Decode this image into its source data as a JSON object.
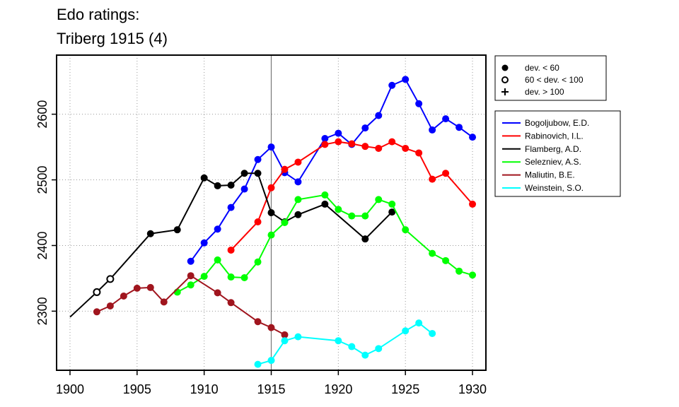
{
  "title_lines": [
    "Edo ratings:",
    "Triberg 1915 (4)"
  ],
  "chart_data": {
    "type": "line",
    "title": "Edo ratings: Triberg 1915 (4)",
    "xlabel": "",
    "ylabel": "",
    "xlim": [
      1899,
      1931
    ],
    "ylim": [
      2210,
      2690
    ],
    "x_ticks": [
      1900,
      1905,
      1910,
      1915,
      1920,
      1925,
      1930
    ],
    "y_ticks": [
      2300,
      2400,
      2500,
      2600
    ],
    "grid": true,
    "event_year": 1915,
    "marker_legend": [
      {
        "label": "dev. < 60",
        "symbol": "filled-circle"
      },
      {
        "label": "60 < dev. < 100",
        "symbol": "open-circle"
      },
      {
        "label": "dev. > 100",
        "symbol": "plus"
      }
    ],
    "legend_position": "right",
    "series": [
      {
        "name": "Bogoljubow, E.D.",
        "color": "#0000ff",
        "points": [
          [
            1909,
            2376,
            "f"
          ],
          [
            1910,
            2404,
            "f"
          ],
          [
            1911,
            2425,
            "f"
          ],
          [
            1912,
            2458,
            "f"
          ],
          [
            1913,
            2486,
            "f"
          ],
          [
            1914,
            2531,
            "f"
          ],
          [
            1915,
            2550,
            "f"
          ],
          [
            1916,
            2511,
            "f"
          ],
          [
            1917,
            2497,
            "f"
          ],
          [
            1919,
            2563,
            "f"
          ],
          [
            1920,
            2571,
            "f"
          ],
          [
            1921,
            2554,
            "f"
          ],
          [
            1922,
            2579,
            "f"
          ],
          [
            1923,
            2598,
            "f"
          ],
          [
            1924,
            2644,
            "f"
          ],
          [
            1925,
            2653,
            "f"
          ],
          [
            1926,
            2616,
            "f"
          ],
          [
            1927,
            2576,
            "f"
          ],
          [
            1928,
            2593,
            "f"
          ],
          [
            1929,
            2580,
            "f"
          ],
          [
            1930,
            2565,
            "f"
          ]
        ]
      },
      {
        "name": "Rabinovich, I.L.",
        "color": "#ff0000",
        "points": [
          [
            1912,
            2393,
            "f"
          ],
          [
            1914,
            2436,
            "f"
          ],
          [
            1915,
            2488,
            "f"
          ],
          [
            1916,
            2516,
            "f"
          ],
          [
            1917,
            2527,
            "f"
          ],
          [
            1919,
            2554,
            "f"
          ],
          [
            1920,
            2558,
            "f"
          ],
          [
            1921,
            2555,
            "f"
          ],
          [
            1922,
            2551,
            "f"
          ],
          [
            1923,
            2548,
            "f"
          ],
          [
            1924,
            2558,
            "f"
          ],
          [
            1925,
            2548,
            "f"
          ],
          [
            1926,
            2541,
            "f"
          ],
          [
            1927,
            2501,
            "f"
          ],
          [
            1928,
            2510,
            "f"
          ],
          [
            1930,
            2463,
            "f"
          ]
        ]
      },
      {
        "name": "Flamberg, A.D.",
        "color": "#000000",
        "points": [
          [
            1900,
            2291,
            "n"
          ],
          [
            1902,
            2329,
            "o"
          ],
          [
            1903,
            2349,
            "o"
          ],
          [
            1906,
            2418,
            "f"
          ],
          [
            1908,
            2424,
            "f"
          ],
          [
            1910,
            2503,
            "f"
          ],
          [
            1911,
            2491,
            "f"
          ],
          [
            1912,
            2492,
            "f"
          ],
          [
            1913,
            2510,
            "f"
          ],
          [
            1914,
            2510,
            "f"
          ],
          [
            1915,
            2450,
            "f"
          ],
          [
            1916,
            2436,
            "f"
          ],
          [
            1917,
            2447,
            "f"
          ],
          [
            1919,
            2463,
            "f"
          ],
          [
            1922,
            2410,
            "f"
          ],
          [
            1924,
            2451,
            "f"
          ]
        ]
      },
      {
        "name": "Selezniev, A.S.",
        "color": "#00ff00",
        "points": [
          [
            1908,
            2329,
            "f"
          ],
          [
            1909,
            2340,
            "f"
          ],
          [
            1910,
            2353,
            "f"
          ],
          [
            1911,
            2378,
            "f"
          ],
          [
            1912,
            2352,
            "f"
          ],
          [
            1913,
            2351,
            "f"
          ],
          [
            1914,
            2375,
            "f"
          ],
          [
            1915,
            2416,
            "f"
          ],
          [
            1916,
            2435,
            "f"
          ],
          [
            1917,
            2470,
            "f"
          ],
          [
            1919,
            2477,
            "f"
          ],
          [
            1920,
            2455,
            "f"
          ],
          [
            1921,
            2445,
            "f"
          ],
          [
            1922,
            2445,
            "f"
          ],
          [
            1923,
            2470,
            "f"
          ],
          [
            1924,
            2463,
            "f"
          ],
          [
            1925,
            2424,
            "f"
          ],
          [
            1927,
            2388,
            "f"
          ],
          [
            1928,
            2377,
            "f"
          ],
          [
            1929,
            2361,
            "f"
          ],
          [
            1930,
            2355,
            "f"
          ]
        ]
      },
      {
        "name": "Maliutin, B.E.",
        "color": "#a0151e",
        "points": [
          [
            1902,
            2299,
            "f"
          ],
          [
            1903,
            2308,
            "f"
          ],
          [
            1904,
            2323,
            "f"
          ],
          [
            1905,
            2335,
            "f"
          ],
          [
            1906,
            2336,
            "f"
          ],
          [
            1907,
            2314,
            "f"
          ],
          [
            1909,
            2354,
            "f"
          ],
          [
            1911,
            2328,
            "f"
          ],
          [
            1912,
            2313,
            "f"
          ],
          [
            1914,
            2284,
            "f"
          ],
          [
            1915,
            2275,
            "f"
          ],
          [
            1916,
            2264,
            "f"
          ]
        ]
      },
      {
        "name": "Weinstein, S.O.",
        "color": "#00ffff",
        "points": [
          [
            1914,
            2219,
            "f"
          ],
          [
            1915,
            2225,
            "f"
          ],
          [
            1916,
            2255,
            "f"
          ],
          [
            1917,
            2261,
            "f"
          ],
          [
            1920,
            2255,
            "f"
          ],
          [
            1921,
            2246,
            "f"
          ],
          [
            1922,
            2233,
            "f"
          ],
          [
            1923,
            2243,
            "f"
          ],
          [
            1925,
            2270,
            "f"
          ],
          [
            1926,
            2282,
            "f"
          ],
          [
            1927,
            2266,
            "f"
          ]
        ]
      }
    ]
  }
}
